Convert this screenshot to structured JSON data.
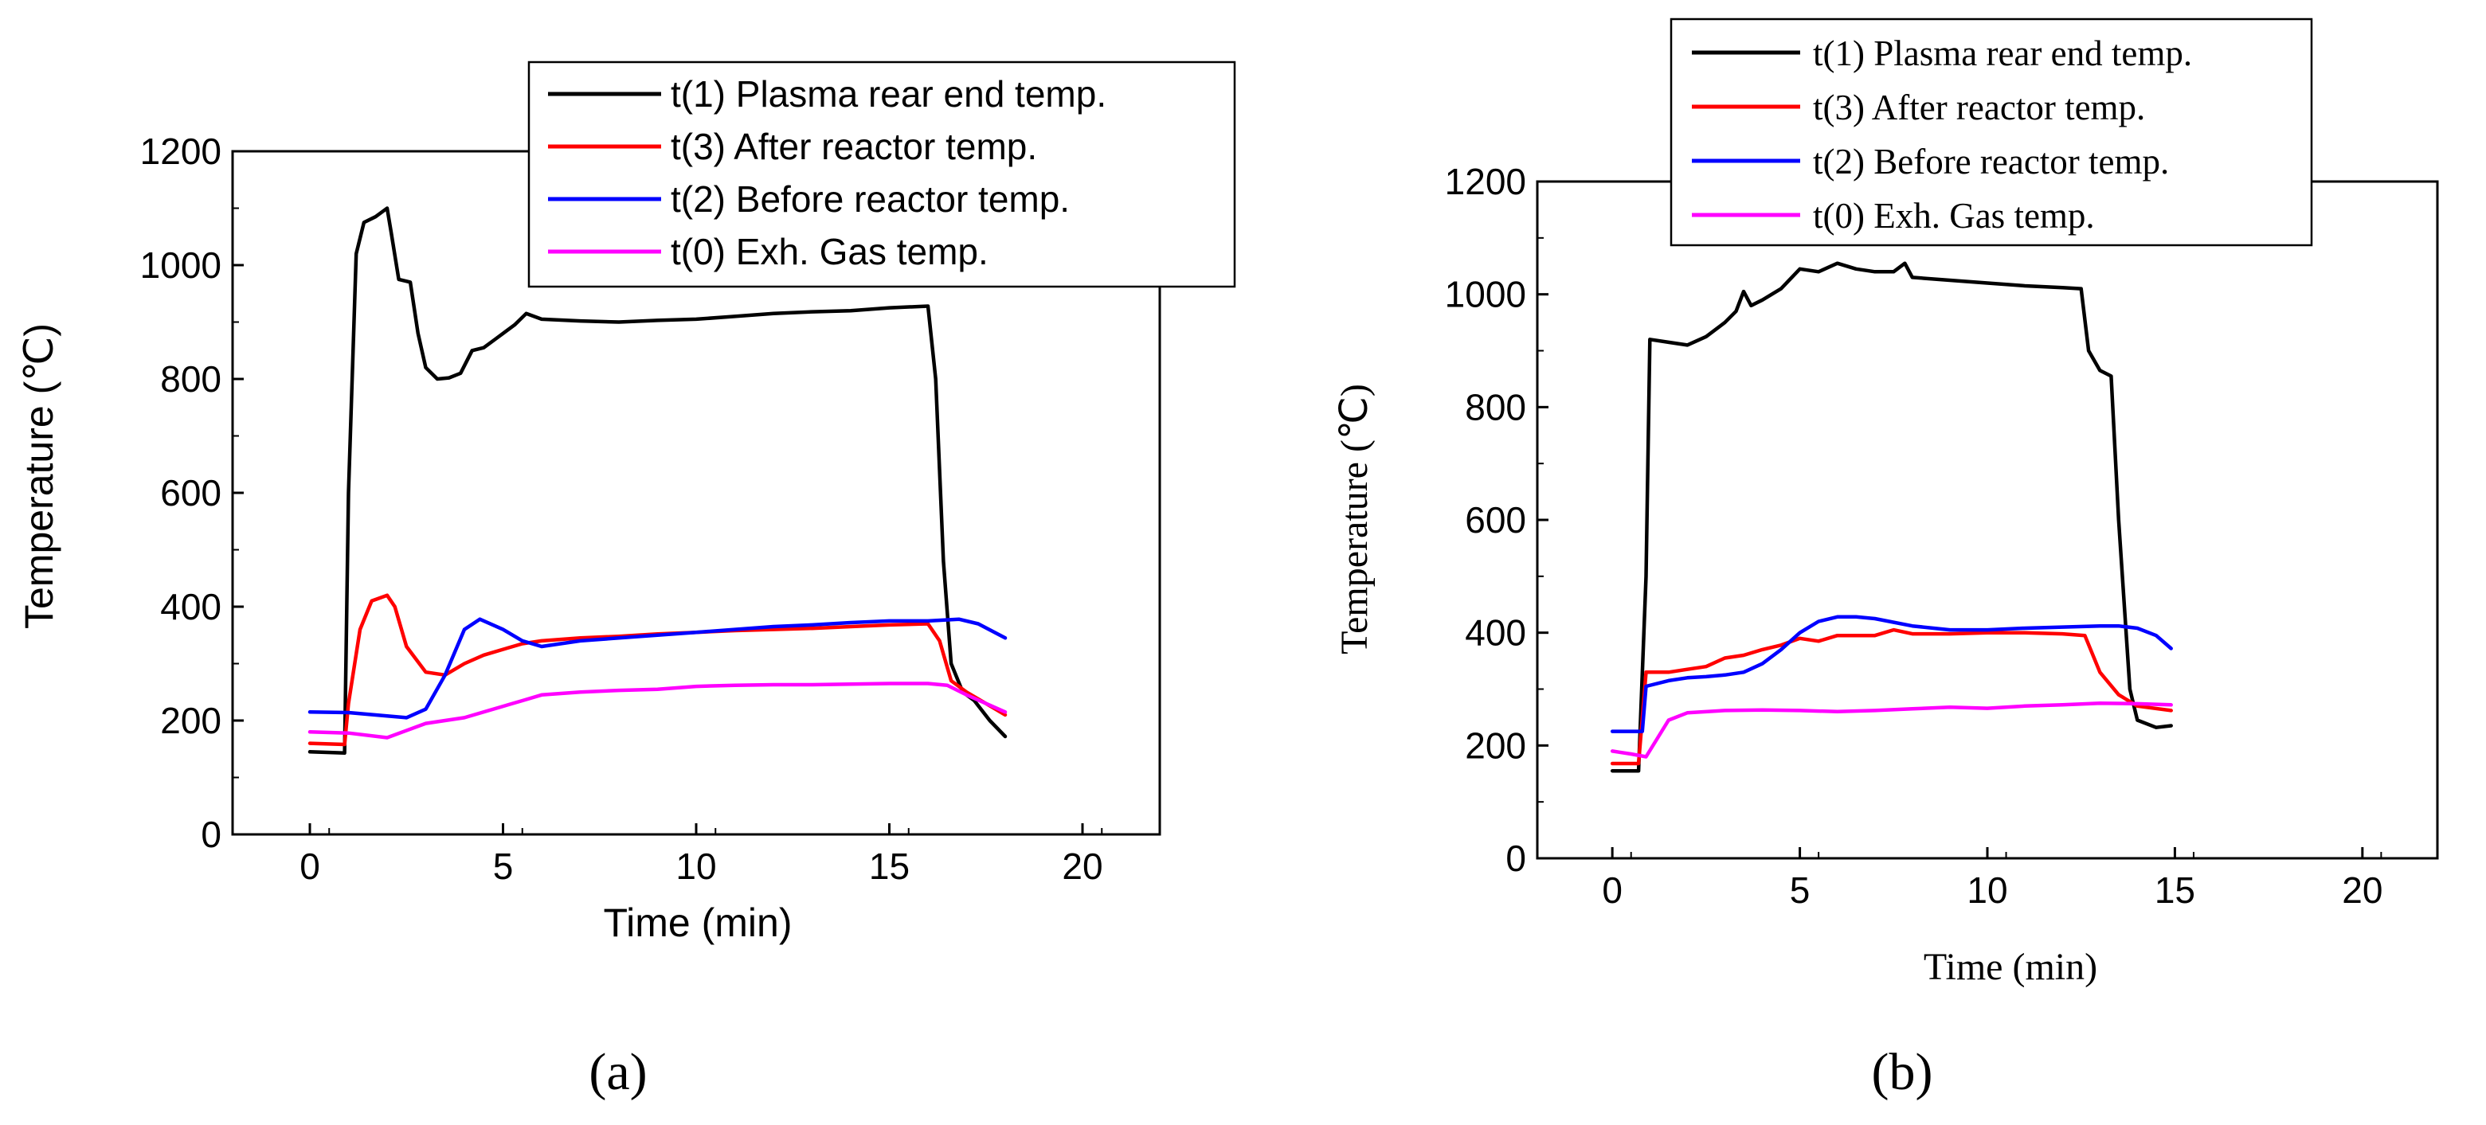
{
  "figure": {
    "panel_a_label": "(a)",
    "panel_b_label": "(b)"
  },
  "colors": {
    "t1": "#000000",
    "t3": "#ff0000",
    "t2": "#0000ff",
    "t0": "#ff00ff",
    "axis": "#000000"
  },
  "chart_data": [
    {
      "type": "line",
      "panel": "(a)",
      "title": "",
      "xlabel": "Time (min)",
      "ylabel": "Temperature (℃)",
      "xlim": [
        -2,
        22
      ],
      "ylim": [
        0,
        1200
      ],
      "xticks": [
        0,
        5,
        10,
        15,
        20
      ],
      "yticks": [
        0,
        200,
        400,
        600,
        800,
        1000,
        1200
      ],
      "legend_position": "top-right",
      "series": [
        {
          "name": "t(1) Plasma rear end temp.",
          "color_key": "t1",
          "x": [
            0,
            0.9,
            1.0,
            1.2,
            1.4,
            1.7,
            2.0,
            2.1,
            2.3,
            2.6,
            2.8,
            3.0,
            3.3,
            3.6,
            3.9,
            4.2,
            4.5,
            4.8,
            5.0,
            5.3,
            5.6,
            6.0,
            7.0,
            8.0,
            9.0,
            10.0,
            11.0,
            12.0,
            13.0,
            14.0,
            15.0,
            16.0,
            16.2,
            16.4,
            16.6,
            16.9,
            17.2,
            17.6,
            18.0
          ],
          "y": [
            145,
            143,
            600,
            1020,
            1075,
            1085,
            1100,
            1060,
            975,
            970,
            880,
            820,
            800,
            802,
            810,
            850,
            855,
            870,
            880,
            895,
            915,
            905,
            902,
            900,
            903,
            905,
            910,
            915,
            918,
            920,
            925,
            928,
            800,
            480,
            300,
            250,
            235,
            200,
            172
          ]
        },
        {
          "name": "t(3) After reactor temp.",
          "color_key": "t3",
          "x": [
            0,
            0.9,
            1.0,
            1.3,
            1.6,
            2.0,
            2.2,
            2.5,
            3.0,
            3.5,
            4.0,
            4.5,
            5.0,
            5.5,
            6.0,
            7.0,
            8.0,
            9.0,
            10.0,
            11.0,
            12.0,
            13.0,
            14.0,
            15.0,
            16.0,
            16.3,
            16.6,
            17.0,
            18.0
          ],
          "y": [
            160,
            158,
            230,
            360,
            410,
            420,
            400,
            330,
            285,
            280,
            300,
            315,
            325,
            335,
            340,
            345,
            348,
            352,
            355,
            358,
            360,
            362,
            365,
            368,
            370,
            340,
            270,
            250,
            210
          ]
        },
        {
          "name": "t(2) Before reactor temp.",
          "color_key": "t2",
          "x": [
            0,
            1.0,
            2.0,
            2.5,
            3.0,
            3.5,
            4.0,
            4.4,
            5.0,
            5.5,
            6.0,
            7.0,
            8.0,
            9.0,
            10.0,
            11.0,
            12.0,
            13.0,
            14.0,
            15.0,
            16.0,
            16.8,
            17.3,
            18.0
          ],
          "y": [
            215,
            214,
            208,
            205,
            220,
            280,
            360,
            378,
            360,
            340,
            330,
            340,
            345,
            350,
            355,
            360,
            365,
            368,
            372,
            375,
            375,
            378,
            370,
            345
          ]
        },
        {
          "name": "t(0) Exh. Gas temp.",
          "color_key": "t0",
          "x": [
            0,
            1.0,
            2.0,
            3.0,
            4.0,
            5.0,
            5.5,
            6.0,
            7.0,
            8.0,
            9.0,
            10.0,
            11.0,
            12.0,
            13.0,
            14.0,
            15.0,
            16.0,
            16.5,
            17.0,
            18.0
          ],
          "y": [
            180,
            178,
            170,
            195,
            205,
            225,
            235,
            245,
            250,
            253,
            255,
            260,
            262,
            263,
            263,
            264,
            265,
            265,
            262,
            245,
            215
          ]
        }
      ]
    },
    {
      "type": "line",
      "panel": "(b)",
      "title": "",
      "xlabel": "Time (min)",
      "ylabel": "Temperature (℃)",
      "xlim": [
        -2,
        22
      ],
      "ylim": [
        0,
        1200
      ],
      "xticks": [
        0,
        5,
        10,
        15,
        20
      ],
      "yticks": [
        0,
        200,
        400,
        600,
        800,
        1000,
        1200
      ],
      "legend_position": "top-center",
      "series": [
        {
          "name": "t(1) Plasma rear end temp.",
          "color_key": "t1",
          "x": [
            0,
            0.7,
            0.9,
            1.0,
            1.5,
            2.0,
            2.5,
            3.0,
            3.3,
            3.5,
            3.7,
            4.0,
            4.5,
            5.0,
            5.5,
            6.0,
            6.5,
            7.0,
            7.5,
            7.8,
            8.0,
            9.0,
            10.0,
            11.0,
            12.0,
            12.5,
            12.7,
            13.0,
            13.3,
            13.5,
            13.8,
            14.0,
            14.5,
            14.9
          ],
          "y": [
            155,
            155,
            500,
            920,
            915,
            910,
            925,
            950,
            970,
            1005,
            980,
            990,
            1010,
            1045,
            1040,
            1055,
            1045,
            1040,
            1040,
            1055,
            1030,
            1025,
            1020,
            1015,
            1012,
            1010,
            900,
            865,
            855,
            600,
            300,
            245,
            232,
            235
          ]
        },
        {
          "name": "t(3) After reactor temp.",
          "color_key": "t3",
          "x": [
            0,
            0.7,
            0.9,
            1.5,
            2.0,
            2.5,
            3.0,
            3.5,
            4.0,
            4.5,
            5.0,
            5.5,
            6.0,
            7.0,
            7.5,
            8.0,
            9.0,
            10.0,
            11.0,
            12.0,
            12.6,
            13.0,
            13.5,
            14.0,
            14.9
          ],
          "y": [
            168,
            168,
            330,
            330,
            335,
            340,
            355,
            360,
            370,
            378,
            390,
            385,
            395,
            395,
            405,
            398,
            398,
            400,
            400,
            398,
            395,
            330,
            290,
            270,
            262
          ]
        },
        {
          "name": "t(2) Before reactor temp.",
          "color_key": "t2",
          "x": [
            0,
            0.8,
            0.9,
            1.5,
            2.0,
            2.5,
            3.0,
            3.5,
            4.0,
            4.5,
            5.0,
            5.5,
            6.0,
            6.5,
            7.0,
            8.0,
            9.0,
            10.0,
            11.0,
            12.0,
            13.0,
            13.5,
            14.0,
            14.5,
            14.9
          ],
          "y": [
            225,
            225,
            305,
            315,
            320,
            322,
            325,
            330,
            345,
            370,
            400,
            420,
            428,
            428,
            425,
            412,
            405,
            405,
            408,
            410,
            412,
            412,
            408,
            395,
            372
          ]
        },
        {
          "name": "t(0) Exh. Gas temp.",
          "color_key": "t0",
          "x": [
            0,
            0.5,
            0.9,
            1.5,
            2.0,
            3.0,
            4.0,
            5.0,
            6.0,
            7.0,
            8.0,
            9.0,
            10.0,
            11.0,
            12.0,
            13.0,
            14.0,
            14.9
          ],
          "y": [
            190,
            185,
            180,
            245,
            258,
            262,
            263,
            262,
            260,
            262,
            265,
            268,
            266,
            270,
            272,
            275,
            274,
            272
          ]
        }
      ]
    }
  ]
}
